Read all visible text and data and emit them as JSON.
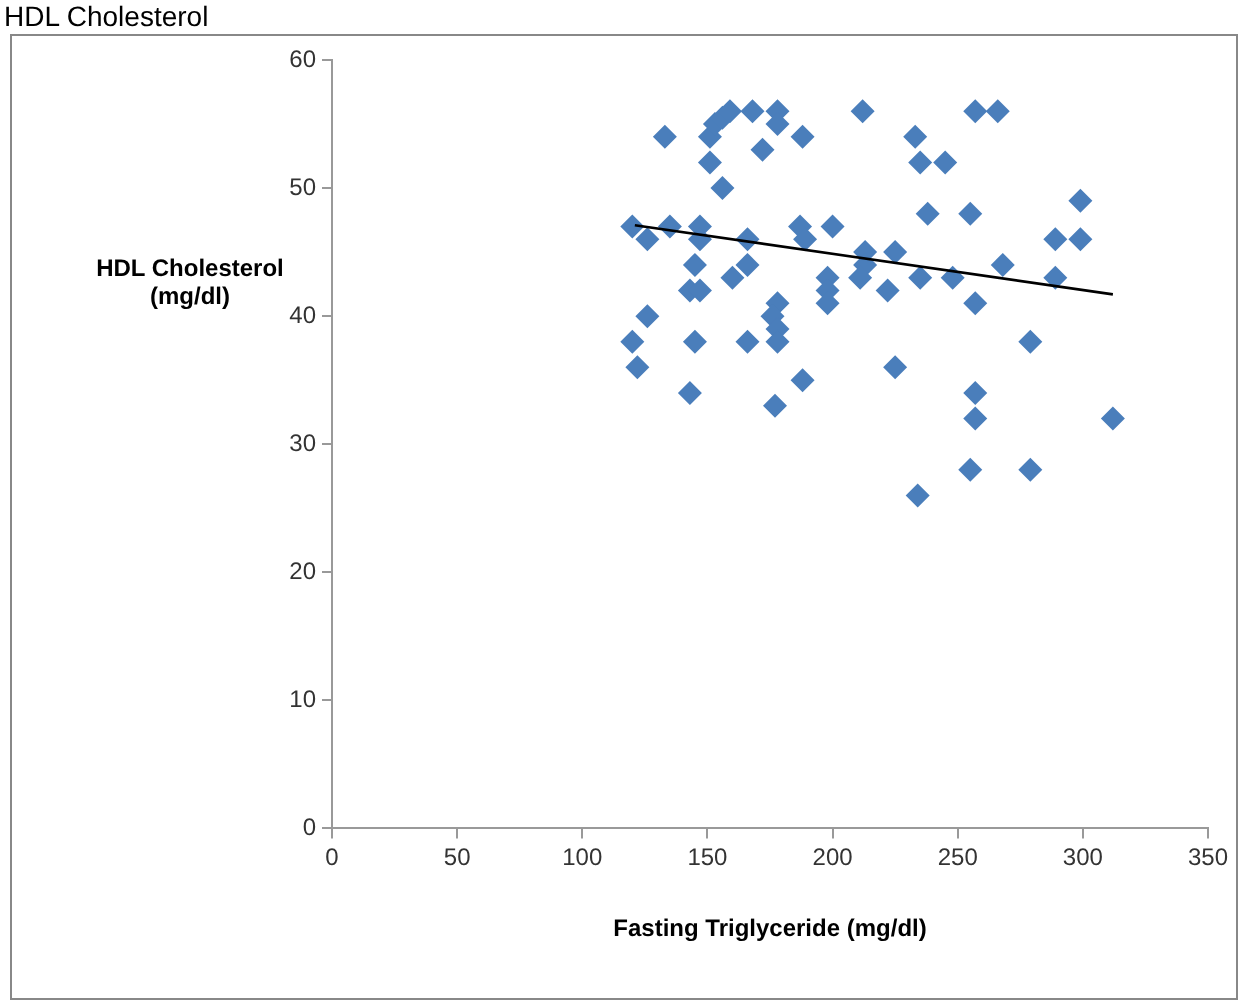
{
  "chart_data": {
    "type": "scatter",
    "title": "HDL Cholesterol",
    "xlabel": "Fasting Triglyceride (mg/dl)",
    "ylabel": "HDL Cholesterol (mg/dl)",
    "xlim": [
      0,
      350
    ],
    "xticks": [
      0,
      50,
      100,
      150,
      200,
      250,
      300,
      350
    ],
    "ylim": [
      0,
      60
    ],
    "yticks": [
      0,
      10,
      20,
      30,
      40,
      50,
      60
    ],
    "grid": false,
    "legend": false,
    "marker": "diamond",
    "series": [
      {
        "type": "scatter",
        "color": "#4a7ebb",
        "x": [
          133,
          151,
          153,
          156,
          159,
          168,
          178,
          178,
          172,
          188,
          151,
          156,
          212,
          257,
          266,
          233,
          235,
          245,
          238,
          255,
          299,
          289,
          299,
          120,
          126,
          135,
          147,
          147,
          166,
          187,
          189,
          200,
          213,
          225,
          213,
          145,
          166,
          160,
          198,
          211,
          235,
          248,
          268,
          289,
          143,
          147,
          198,
          222,
          198,
          257,
          178,
          176,
          126,
          178,
          120,
          145,
          166,
          178,
          279,
          122,
          225,
          143,
          188,
          177,
          257,
          257,
          312,
          255,
          279,
          234
        ],
        "values": [
          54,
          54,
          55,
          55.5,
          56,
          56,
          56,
          55,
          53,
          54,
          52,
          50,
          56,
          56,
          56,
          54,
          52,
          52,
          48,
          48,
          49,
          46,
          46,
          47,
          46,
          47,
          47,
          46,
          46,
          47,
          46,
          47,
          45,
          45,
          44,
          44,
          44,
          43,
          43,
          43,
          43,
          43,
          44,
          43,
          42,
          42,
          42,
          42,
          41,
          41,
          41,
          40,
          40,
          39,
          38,
          38,
          38,
          38,
          38,
          36,
          36,
          34,
          35,
          33,
          34,
          32,
          32,
          28,
          28,
          26
        ]
      },
      {
        "type": "line",
        "color": "#000000",
        "marker": "none",
        "x": [
          121,
          312
        ],
        "values": [
          47.1,
          41.7
        ]
      }
    ]
  }
}
